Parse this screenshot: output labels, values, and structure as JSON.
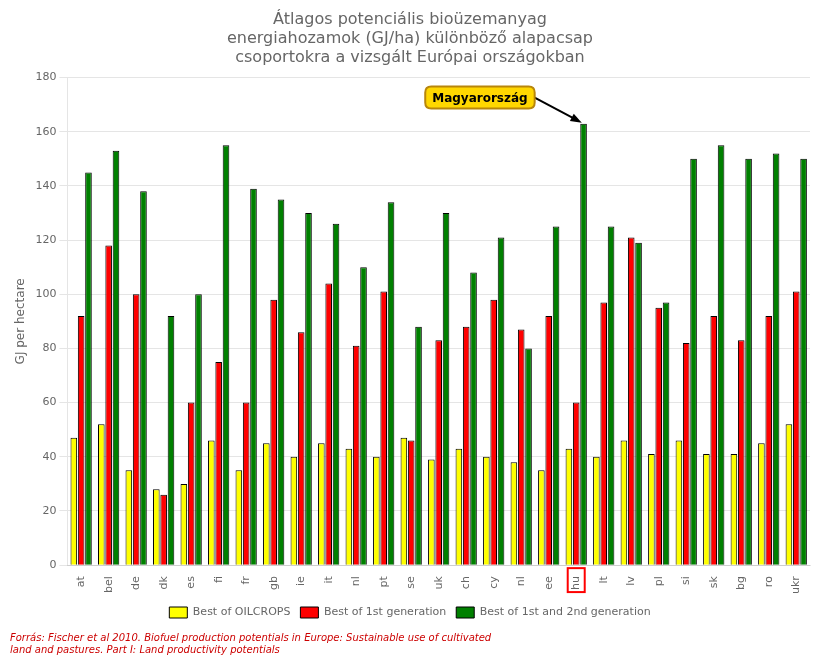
{
  "chart_data": {
    "type": "bar",
    "title": "Átlagos potenciális bioüzemanyag\nenergiahozamok (GJ/ha) különböző alapacsap\ncsoportokra a vizsgált Európai országokban",
    "y_label": "GJ per hectare",
    "categories": [
      "at",
      "bel",
      "de",
      "dk",
      "es",
      "fi",
      "fr",
      "gb",
      "ie",
      "it",
      "nl",
      "pt",
      "se",
      "uk",
      "ch",
      "cy",
      "nl",
      "ee",
      "hu",
      "lt",
      "lv",
      "pl",
      "si",
      "sk",
      "bg",
      "ro",
      "ukr"
    ],
    "series": [
      {
        "name": "Best of OILCROPS",
        "color": "#FFFF00",
        "values": [
          47,
          52,
          35,
          28,
          30,
          46,
          35,
          45,
          40,
          45,
          43,
          40,
          47,
          39,
          43,
          40,
          38,
          35,
          43,
          40,
          46,
          41,
          46,
          41,
          41,
          45,
          52
        ]
      },
      {
        "name": "Best of 1st generation",
        "color": "#FF0000",
        "values": [
          92,
          118,
          100,
          26,
          60,
          75,
          60,
          98,
          86,
          104,
          81,
          101,
          46,
          83,
          88,
          98,
          87,
          92,
          60,
          97,
          121,
          95,
          82,
          92,
          83,
          92,
          101
        ]
      },
      {
        "name": "Best of 1st and 2nd generation",
        "color": "#008000",
        "values": [
          145,
          153,
          138,
          92,
          100,
          155,
          139,
          135,
          130,
          126,
          110,
          134,
          88,
          130,
          108,
          121,
          80,
          125,
          163,
          125,
          119,
          97,
          150,
          155,
          150,
          152,
          150
        ]
      }
    ],
    "ylim": [
      0,
      180
    ],
    "yticks": [
      0,
      20,
      40,
      60,
      80,
      100,
      120,
      140,
      160,
      180
    ],
    "grid": true,
    "legend": "bottom",
    "annotations": [
      {
        "text": "Magyarország",
        "category": "hu",
        "series": "Best of 1st and 2nd generation"
      }
    ],
    "source": "Forrás: Fischer et al 2010. Biofuel production potentials in Europe: Sustainable use of cultivated\nland and pastures. Part I: Land productivity potentials"
  }
}
